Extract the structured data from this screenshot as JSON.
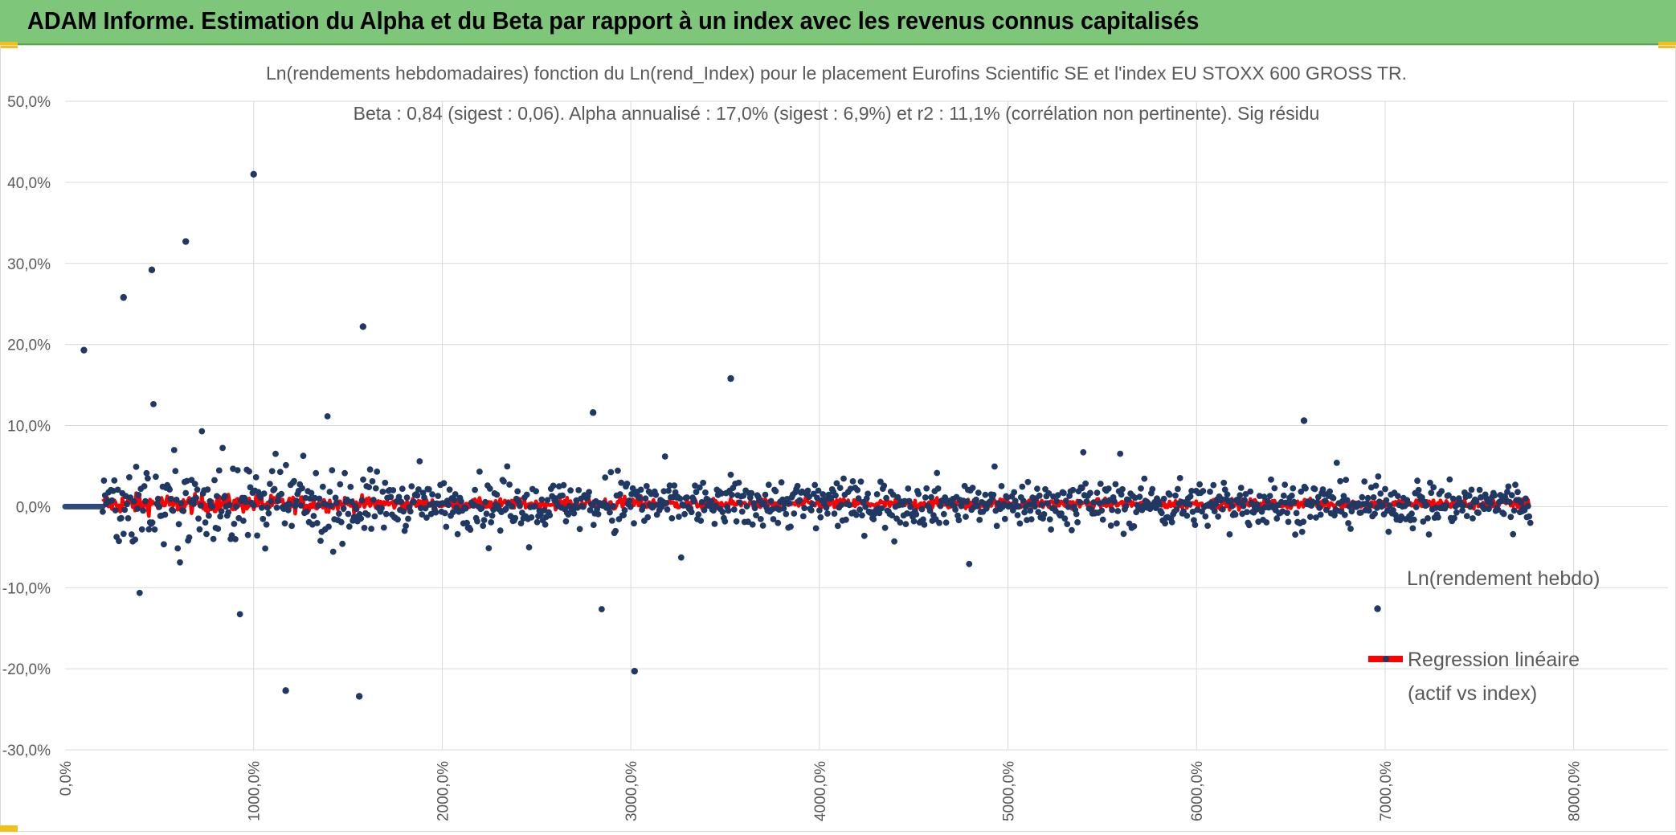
{
  "header": {
    "title": "ADAM Informe. Estimation du Alpha et du Beta par rapport à un index avec les revenus connus capitalisés"
  },
  "chart_data": {
    "type": "scatter",
    "title": "Ln(rendements hebdomadaires) fonction du Ln(rend_Index) pour le placement Eurofins Scientific SE et l'index EU STOXX 600 GROSS TR.",
    "subtitle": "Beta : 0,84 (sigest : 0,06). Alpha annualisé : 17,0% (sigest : 6,9%) et r2 : 11,1% (corrélation non pertinente). Sig résidu",
    "xlabel": "",
    "ylabel": "",
    "ylim": [
      -0.3,
      0.5
    ],
    "y_ticks": [
      "50,0%",
      "40,0%",
      "30,0%",
      "20,0%",
      "10,0%",
      "0,0%",
      "-10,0%",
      "-20,0%",
      "-30,0%"
    ],
    "x_ticks": [
      "0,0%",
      "1000,0%",
      "2000,0%",
      "3000,0%",
      "4000,0%",
      "5000,0%",
      "6000,0%",
      "7000,0%",
      "8000,0%"
    ],
    "grid": true,
    "legend_position": "right",
    "point_count": 1240,
    "series": [
      {
        "name": "Ln(rendement hebdo)",
        "color": "#1f3864",
        "notable_points": [
          {
            "x": 1000,
            "y": 0.41
          },
          {
            "x": 640,
            "y": 0.327
          },
          {
            "x": 460,
            "y": 0.292
          },
          {
            "x": 310,
            "y": 0.258
          },
          {
            "x": 1580,
            "y": 0.222
          },
          {
            "x": 100,
            "y": 0.193
          },
          {
            "x": 2800,
            "y": 0.116
          },
          {
            "x": 3530,
            "y": 0.158
          },
          {
            "x": 3020,
            "y": -0.203
          },
          {
            "x": 1560,
            "y": -0.234
          },
          {
            "x": 1170,
            "y": -0.227
          },
          {
            "x": 6960,
            "y": -0.126
          },
          {
            "x": 6570,
            "y": 0.106
          }
        ]
      },
      {
        "name": "Regression linéaire (actif vs index)",
        "legend_lines": [
          "Regression linéaire",
          "(actif vs index)"
        ],
        "color": "#ff0000"
      }
    ]
  },
  "colors": {
    "banner": "#7dc67a",
    "accent": "#f3c01a",
    "grid": "#d9d9d9",
    "axis_text": "#595959"
  }
}
